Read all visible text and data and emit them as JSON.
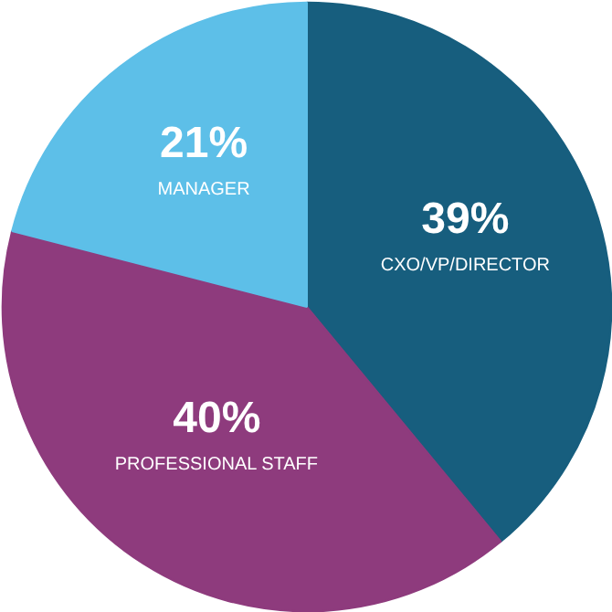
{
  "chart_data": {
    "type": "pie",
    "categories": [
      "CXO/VP/DIRECTOR",
      "PROFESSIONAL STAFF",
      "MANAGER"
    ],
    "values": [
      39,
      40,
      21
    ],
    "value_labels": [
      "39%",
      "40%",
      "21%"
    ],
    "colors": [
      "#175e7e",
      "#8e3b7d",
      "#5dbfe8"
    ]
  }
}
